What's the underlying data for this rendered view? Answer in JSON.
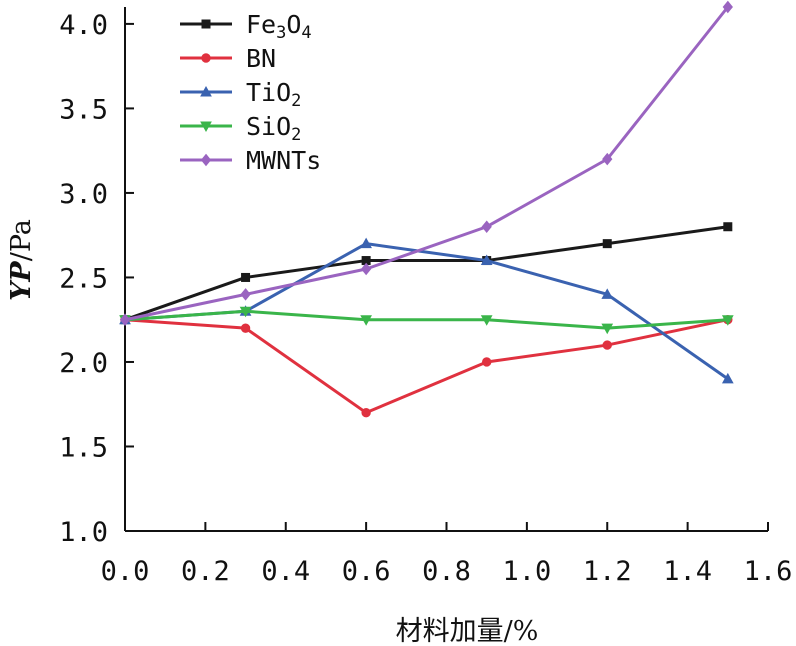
{
  "chart_data": {
    "type": "line",
    "title": "",
    "xlabel": "材料加量/%",
    "ylabel": {
      "main": "YP",
      "unit": "/Pa"
    },
    "xlim": [
      0.0,
      1.6
    ],
    "ylim": [
      1.0,
      4.1
    ],
    "x_ticks": [
      "0.0",
      "0.2",
      "0.4",
      "0.6",
      "0.8",
      "1.0",
      "1.2",
      "1.4",
      "1.6"
    ],
    "y_ticks": [
      "1.0",
      "1.5",
      "2.0",
      "2.5",
      "3.0",
      "3.5",
      "4.0"
    ],
    "x": [
      0.0,
      0.3,
      0.6,
      0.9,
      1.2,
      1.5
    ],
    "legend_position": "top-left",
    "grid": false,
    "series": [
      {
        "name": "Fe3O4",
        "label_base": "Fe",
        "label_parts": [
          [
            "Fe",
            ""
          ],
          [
            "3",
            "sub"
          ],
          [
            "O",
            ""
          ],
          [
            "4",
            "sub"
          ]
        ],
        "color": "#1a1a1a",
        "marker": "square",
        "values": [
          2.25,
          2.5,
          2.6,
          2.6,
          2.7,
          2.8
        ]
      },
      {
        "name": "BN",
        "label_parts": [
          [
            "BN",
            ""
          ]
        ],
        "color": "#e0313f",
        "marker": "circle",
        "values": [
          2.25,
          2.2,
          1.7,
          2.0,
          2.1,
          2.25
        ]
      },
      {
        "name": "TiO2",
        "label_parts": [
          [
            "TiO",
            ""
          ],
          [
            "2",
            "sub"
          ]
        ],
        "color": "#3a62b0",
        "marker": "triangle-up",
        "values": [
          2.25,
          2.3,
          2.7,
          2.6,
          2.4,
          1.9
        ]
      },
      {
        "name": "SiO2",
        "label_parts": [
          [
            "SiO",
            ""
          ],
          [
            "2",
            "sub"
          ]
        ],
        "color": "#3ab54a",
        "marker": "triangle-down",
        "values": [
          2.25,
          2.3,
          2.25,
          2.25,
          2.2,
          2.25
        ]
      },
      {
        "name": "MWNTs",
        "label_parts": [
          [
            "MWNTs",
            ""
          ]
        ],
        "color": "#9a64c0",
        "marker": "diamond",
        "values": [
          2.25,
          2.4,
          2.55,
          2.8,
          3.2,
          4.1
        ]
      }
    ]
  }
}
